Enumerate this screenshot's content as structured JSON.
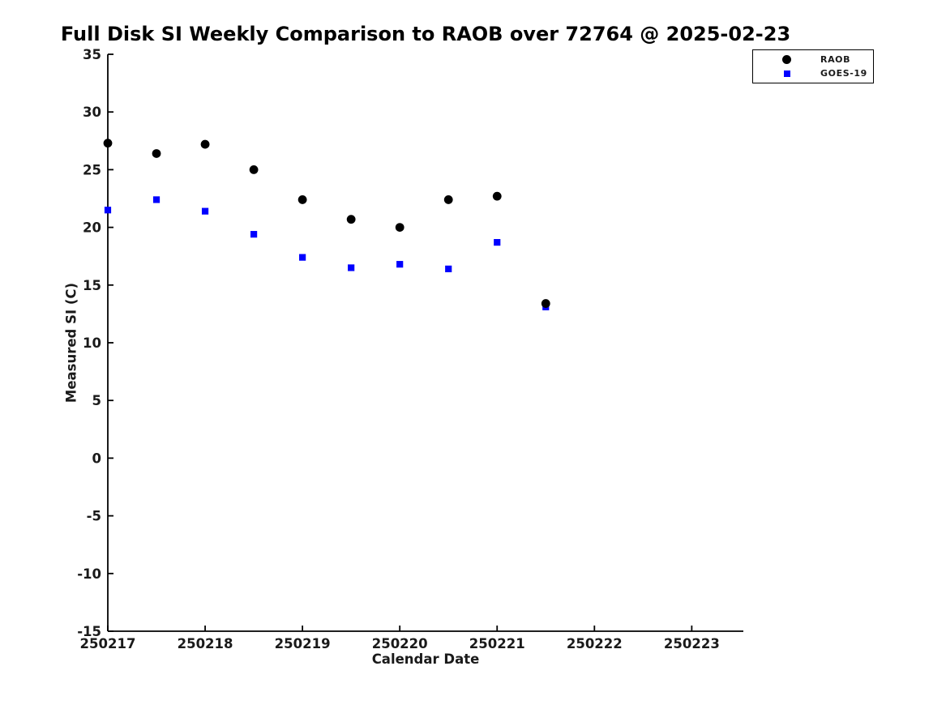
{
  "page": {
    "background_color": "#ffffff",
    "text_color": "#1a1a1a"
  },
  "chart_data": {
    "type": "scatter",
    "title": "Full Disk SI Weekly Comparison to RAOB over 72764 @ 2025-02-23",
    "xlabel": "Calendar Date",
    "ylabel": "Measured SI (C)",
    "xlim": [
      250217,
      250223.53
    ],
    "ylim": [
      -15,
      35
    ],
    "x_ticks": [
      250217,
      250218,
      250219,
      250220,
      250221,
      250222,
      250223
    ],
    "y_ticks": [
      35,
      30,
      25,
      20,
      15,
      10,
      5,
      0,
      -5,
      -10,
      -15
    ],
    "grid": false,
    "legend_position": "top-right",
    "axis_color": "#000000",
    "x": [
      250217.0,
      250217.5,
      250218.0,
      250218.5,
      250219.0,
      250219.5,
      250220.0,
      250220.5,
      250221.0,
      250221.5
    ],
    "series": [
      {
        "name": "RAOB",
        "marker": "circle",
        "color": "#000000",
        "values": [
          27.3,
          26.4,
          27.2,
          25.0,
          22.4,
          20.7,
          20.0,
          22.4,
          22.7,
          13.4
        ]
      },
      {
        "name": "GOES-19",
        "marker": "square",
        "color": "#0000ff",
        "values": [
          21.5,
          22.4,
          21.4,
          19.4,
          17.4,
          16.5,
          16.8,
          16.4,
          18.7,
          13.1
        ]
      }
    ]
  }
}
